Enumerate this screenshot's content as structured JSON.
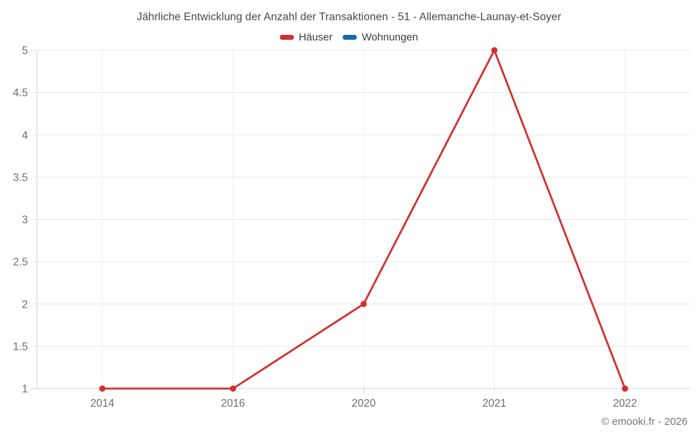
{
  "chart_data": {
    "type": "line",
    "title": "Jährliche Entwicklung der Anzahl der Transaktionen - 51 - Allemanche-Launay-et-Soyer",
    "categories": [
      "2014",
      "2016",
      "2020",
      "2021",
      "2022"
    ],
    "series": [
      {
        "name": "Häuser",
        "color": "#d32f2f",
        "values": [
          1,
          1,
          2,
          5,
          1
        ]
      },
      {
        "name": "Wohnungen",
        "color": "#1769aa",
        "values": []
      }
    ],
    "ylim": [
      1,
      5
    ],
    "ytick_step": 0.5,
    "ytick_labels": [
      "1",
      "1.5",
      "2",
      "2.5",
      "3",
      "3.5",
      "4",
      "4.5",
      "5"
    ],
    "grid": true,
    "legend_position": "top",
    "xlabel": "",
    "ylabel": ""
  },
  "footer": {
    "credit": "© emooki.fr - 2026"
  },
  "style": {
    "grid_color": "#e7e7e7",
    "vgrid_color": "#ededed",
    "axis_color": "#d2d2d2",
    "tick_text_color": "#6e6e6e"
  }
}
